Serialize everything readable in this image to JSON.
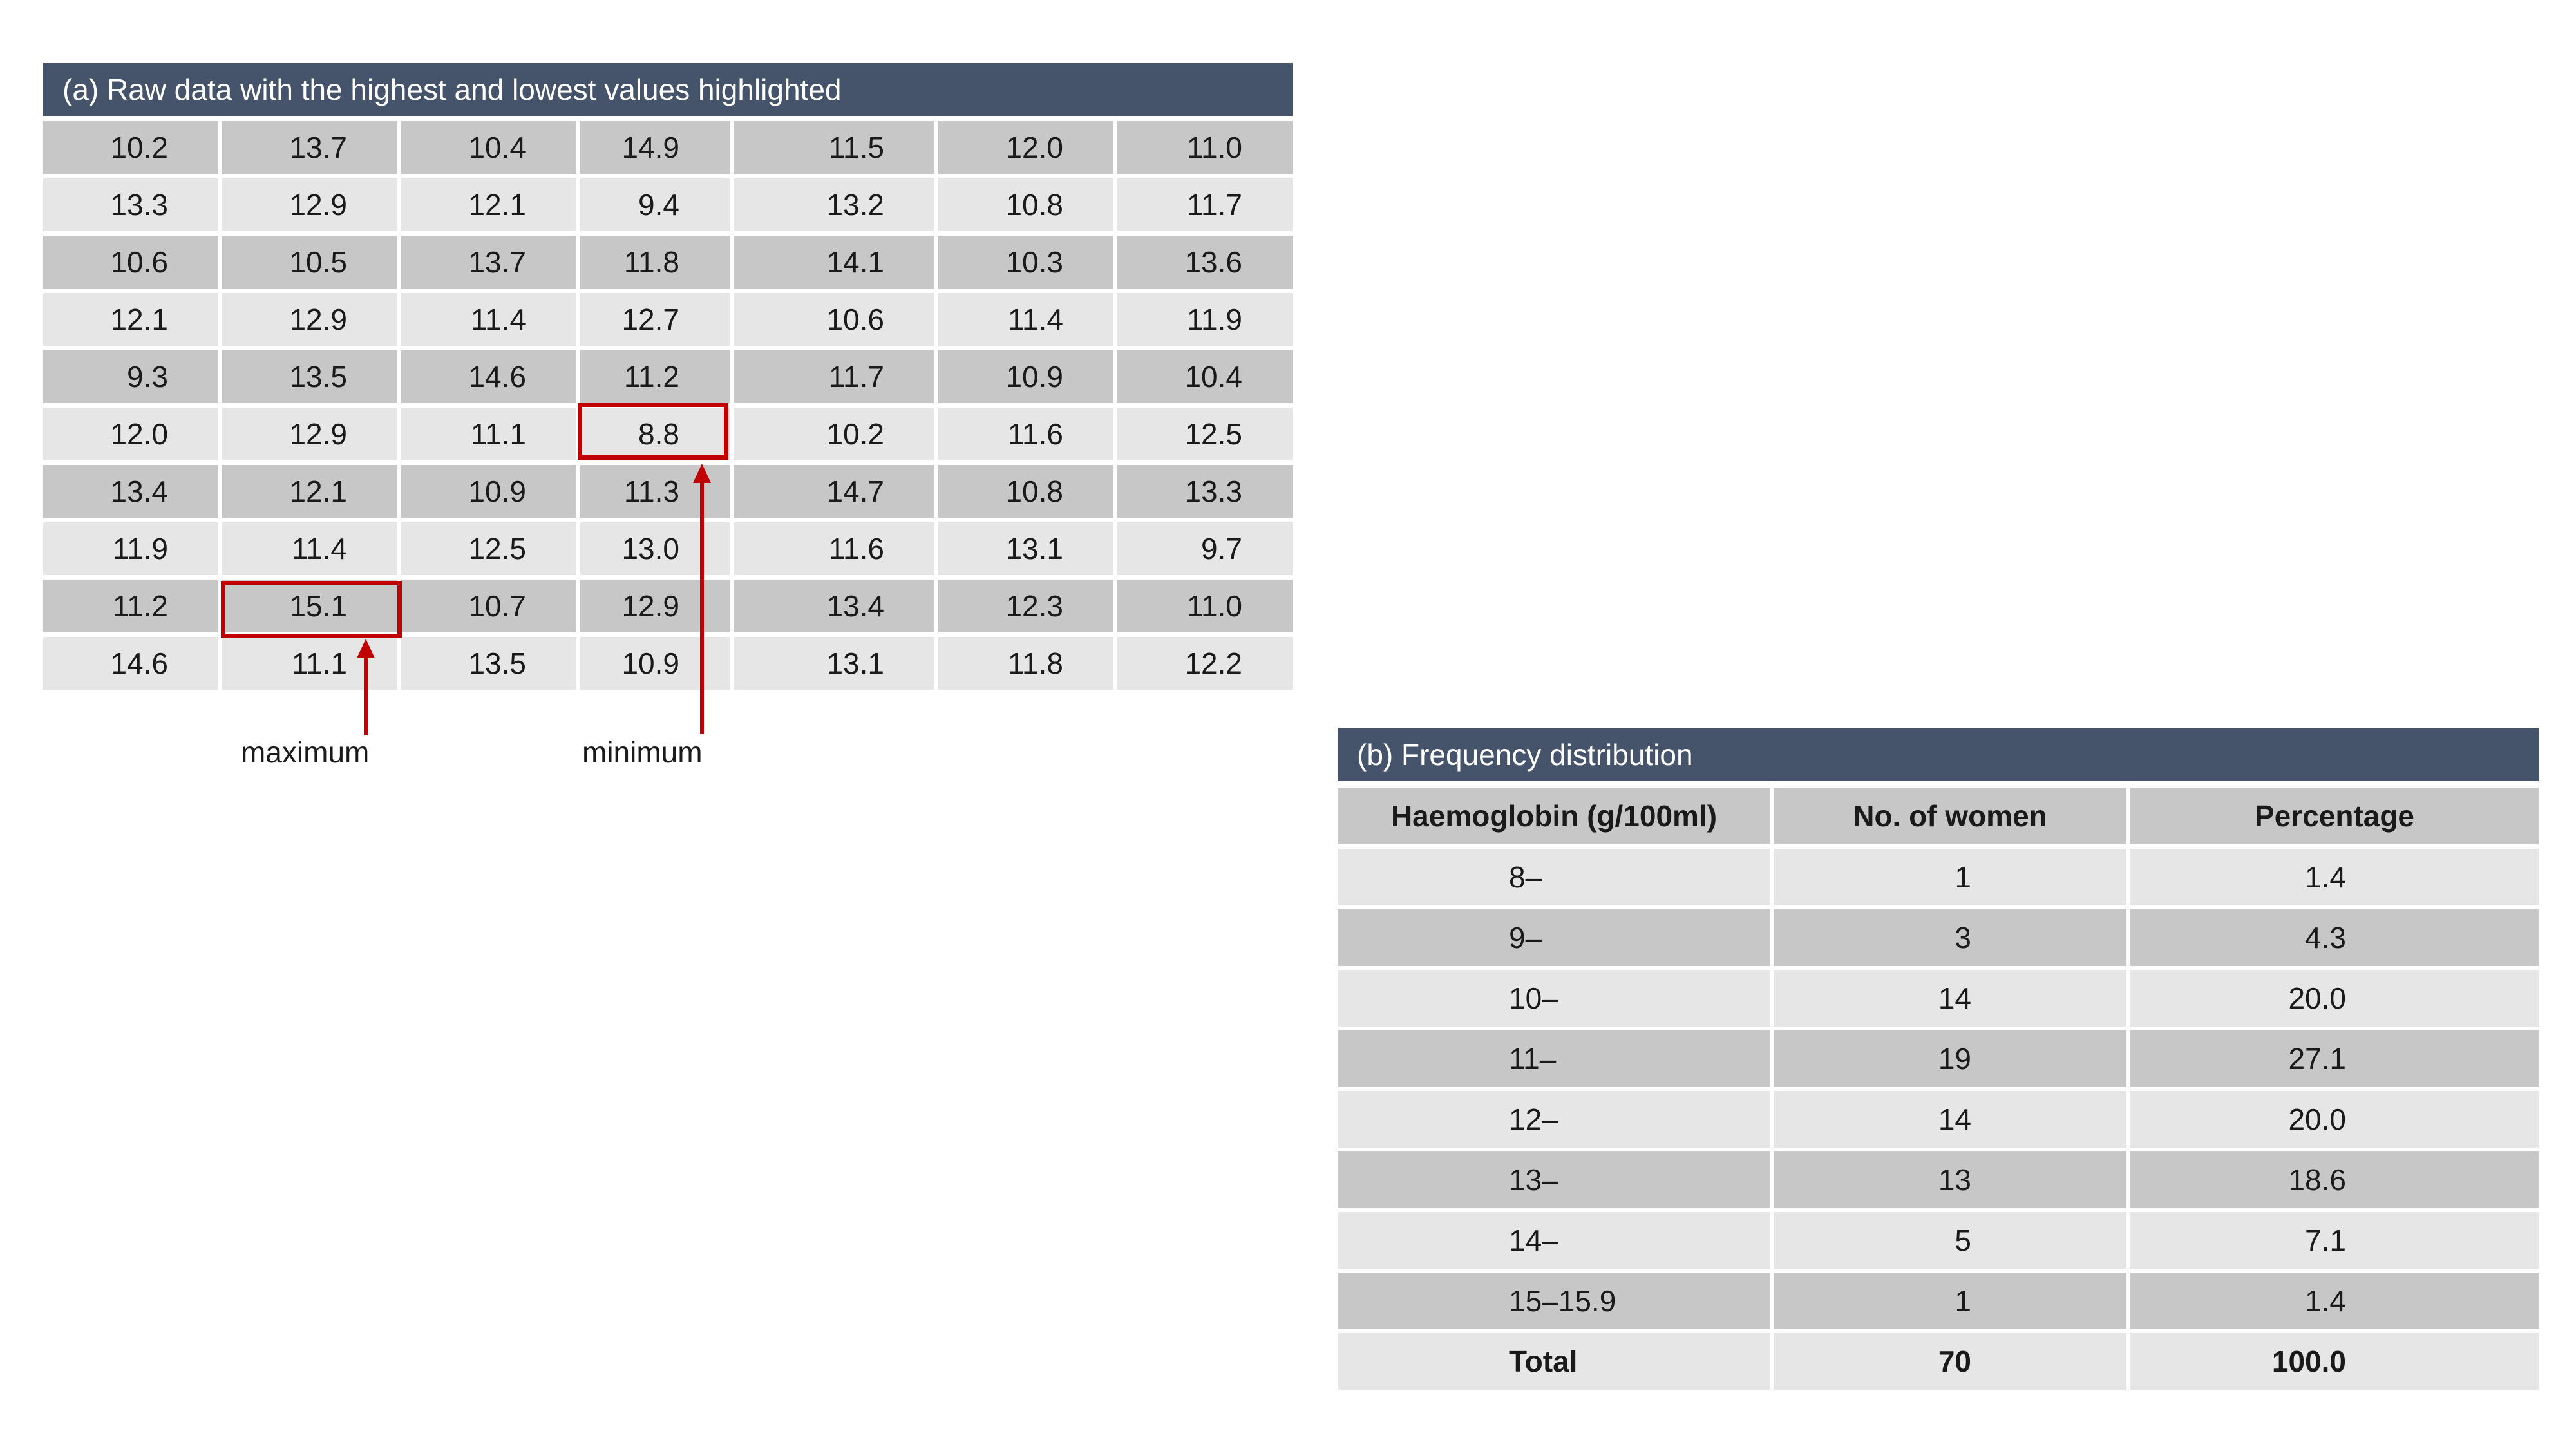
{
  "panel_a": {
    "title": "(a) Raw data with the highest and lowest values highlighted",
    "rows": [
      [
        "10.2",
        "13.7",
        "10.4",
        "14.9",
        "11.5",
        "12.0",
        "11.0"
      ],
      [
        "13.3",
        "12.9",
        "12.1",
        "9.4",
        "13.2",
        "10.8",
        "11.7"
      ],
      [
        "10.6",
        "10.5",
        "13.7",
        "11.8",
        "14.1",
        "10.3",
        "13.6"
      ],
      [
        "12.1",
        "12.9",
        "11.4",
        "12.7",
        "10.6",
        "11.4",
        "11.9"
      ],
      [
        "9.3",
        "13.5",
        "14.6",
        "11.2",
        "11.7",
        "10.9",
        "10.4"
      ],
      [
        "12.0",
        "12.9",
        "11.1",
        "8.8",
        "10.2",
        "11.6",
        "12.5"
      ],
      [
        "13.4",
        "12.1",
        "10.9",
        "11.3",
        "14.7",
        "10.8",
        "13.3"
      ],
      [
        "11.9",
        "11.4",
        "12.5",
        "13.0",
        "11.6",
        "13.1",
        "9.7"
      ],
      [
        "11.2",
        "15.1",
        "10.7",
        "12.9",
        "13.4",
        "12.3",
        "11.0"
      ],
      [
        "14.6",
        "11.1",
        "13.5",
        "10.9",
        "13.1",
        "11.8",
        "12.2"
      ]
    ],
    "maximum_label": "maximum",
    "minimum_label": "minimum",
    "highlight_color": "#c00000",
    "header_color": "#45546b"
  },
  "panel_b": {
    "title": "(b) Frequency distribution",
    "headers": [
      "Haemoglobin (g/100ml)",
      "No. of women",
      "Percentage"
    ],
    "rows": [
      [
        "8–",
        "1",
        "1.4"
      ],
      [
        "9–",
        "3",
        "4.3"
      ],
      [
        "10–",
        "14",
        "20.0"
      ],
      [
        "11–",
        "19",
        "27.1"
      ],
      [
        "12–",
        "14",
        "20.0"
      ],
      [
        "13–",
        "13",
        "18.6"
      ],
      [
        "14–",
        "5",
        "7.1"
      ],
      [
        "15–15.9",
        "1",
        "1.4"
      ]
    ],
    "total": [
      "Total",
      "70",
      "100.0"
    ]
  }
}
